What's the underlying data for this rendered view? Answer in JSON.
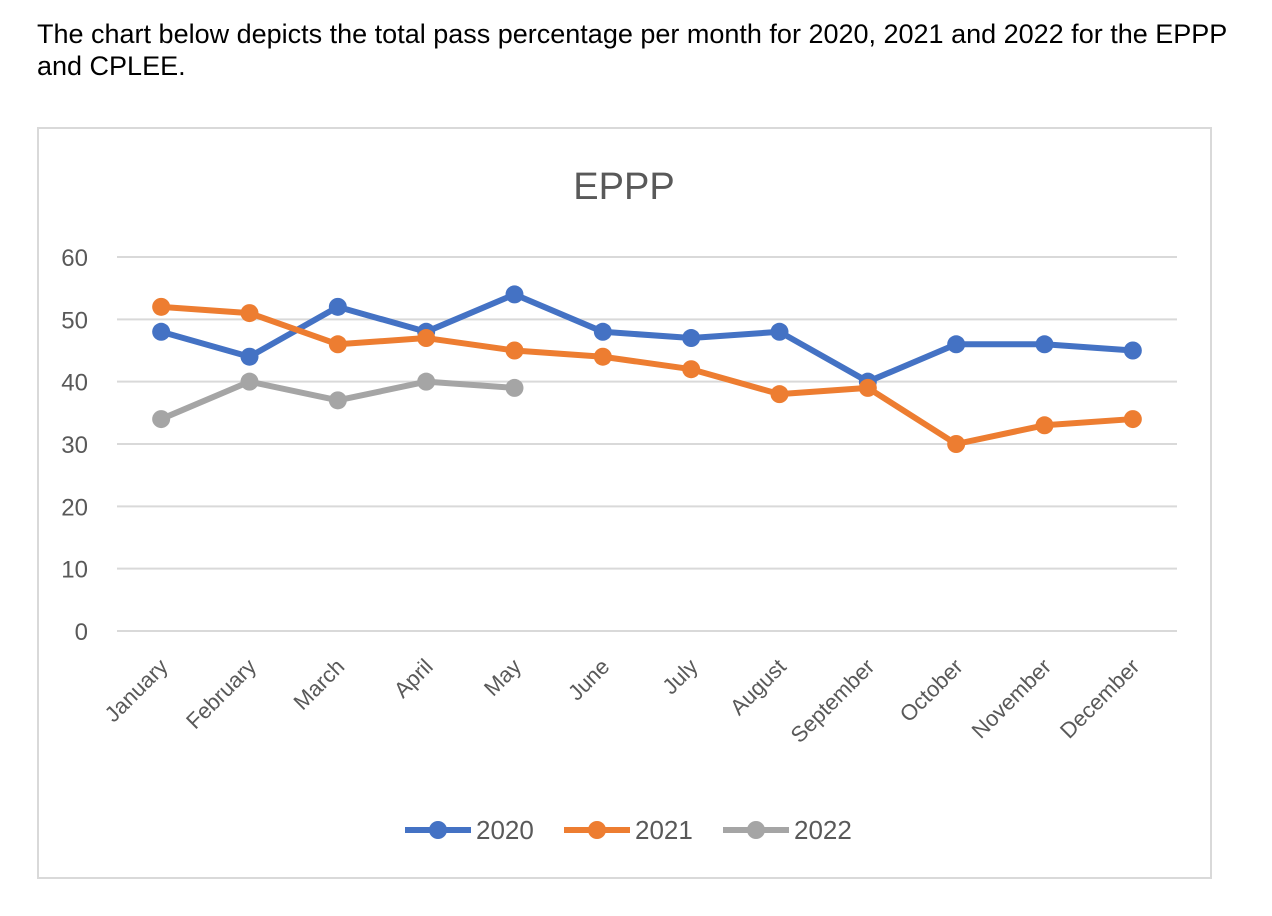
{
  "intro_text": "The chart below depicts the total pass percentage per month for 2020, 2021 and 2022 for the EPPP and CPLEE.",
  "chart_data": {
    "type": "line",
    "title": "EPPP",
    "xlabel": "",
    "ylabel": "",
    "ylim": [
      0,
      60
    ],
    "yticks": [
      0,
      10,
      20,
      30,
      40,
      50,
      60
    ],
    "grid": true,
    "legend": "bottom",
    "categories": [
      "January",
      "February",
      "March",
      "April",
      "May",
      "June",
      "July",
      "August",
      "September",
      "October",
      "November",
      "December"
    ],
    "series": [
      {
        "name": "2020",
        "color": "#4472c4",
        "values": [
          48,
          44,
          52,
          48,
          54,
          48,
          47,
          48,
          40,
          46,
          46,
          45
        ]
      },
      {
        "name": "2021",
        "color": "#ed7d31",
        "values": [
          52,
          51,
          46,
          47,
          45,
          44,
          42,
          38,
          39,
          30,
          33,
          34
        ]
      },
      {
        "name": "2022",
        "color": "#a5a5a5",
        "values": [
          34,
          40,
          37,
          40,
          39,
          null,
          null,
          null,
          null,
          null,
          null,
          null
        ]
      }
    ]
  }
}
